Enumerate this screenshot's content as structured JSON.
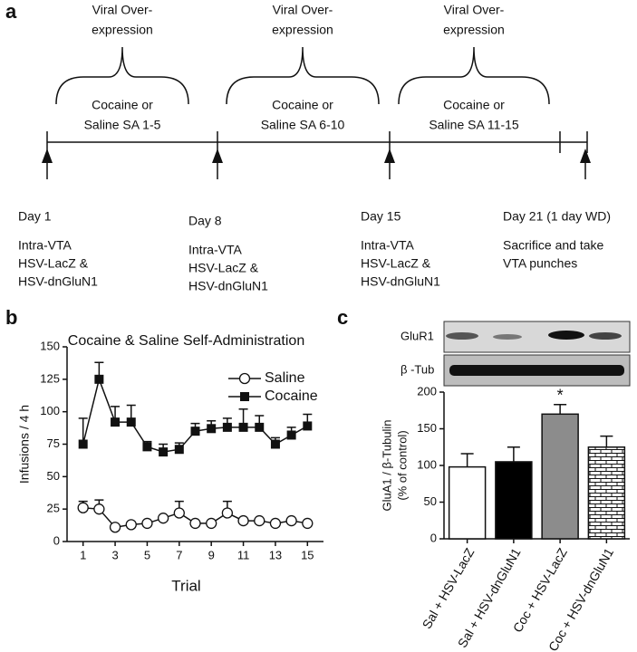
{
  "panel_a": {
    "label": "a",
    "phases": [
      {
        "top": [
          "Viral Over-",
          "expression"
        ],
        "bottom": [
          "Cocaine or",
          "Saline SA 1-5"
        ]
      },
      {
        "top": [
          "Viral Over-",
          "expression"
        ],
        "bottom": [
          "Cocaine or",
          "Saline SA 6-10"
        ]
      },
      {
        "top": [
          "Viral Over-",
          "expression"
        ],
        "bottom": [
          "Cocaine or",
          "Saline SA 11-15"
        ]
      }
    ],
    "days": [
      {
        "day": "Day 1",
        "notes": [
          "Intra-VTA",
          "HSV-LacZ &",
          "HSV-dnGluN1"
        ]
      },
      {
        "day": "Day 8",
        "notes": [
          "Intra-VTA",
          "HSV-LacZ &",
          "HSV-dnGluN1"
        ]
      },
      {
        "day": "Day 15",
        "notes": [
          "Intra-VTA",
          "HSV-LacZ &",
          "HSV-dnGluN1"
        ]
      },
      {
        "day": "Day 21 (1 day WD)",
        "notes": [
          "Sacrifice and take",
          "VTA punches"
        ]
      }
    ]
  },
  "chart_data": [
    {
      "type": "line",
      "panel_label": "b",
      "title": "Cocaine & Saline Self-Administration",
      "x_label": "Trial",
      "y_label": "Infusions / 4 h",
      "x": [
        1,
        2,
        3,
        4,
        5,
        6,
        7,
        8,
        9,
        10,
        11,
        12,
        13,
        14,
        15
      ],
      "xlim": [
        0,
        16
      ],
      "xticks": [
        1,
        3,
        5,
        7,
        9,
        11,
        13,
        15
      ],
      "ylim": [
        0,
        150
      ],
      "yticks": [
        0,
        25,
        50,
        75,
        100,
        125,
        150
      ],
      "legend": "top-right",
      "series": [
        {
          "name": "Saline",
          "color": "#111111",
          "marker": "open-circle",
          "values": [
            26,
            25,
            11,
            13,
            14,
            18,
            22,
            14,
            14,
            22,
            16,
            16,
            14,
            16,
            14
          ],
          "errors": [
            5,
            7,
            1,
            2,
            2,
            2,
            9,
            2,
            2,
            9,
            2,
            1,
            1,
            1,
            1
          ]
        },
        {
          "name": "Cocaine",
          "color": "#111111",
          "marker": "square",
          "values": [
            75,
            125,
            92,
            92,
            73,
            69,
            71,
            85,
            87,
            88,
            88,
            88,
            75,
            82,
            89
          ],
          "errors": [
            20,
            13,
            12,
            13,
            4,
            6,
            5,
            6,
            6,
            7,
            14,
            9,
            5,
            6,
            9
          ]
        }
      ]
    },
    {
      "type": "bar",
      "panel_label": "c",
      "blot_labels": [
        "GluR1",
        "β -Tub"
      ],
      "y_label": [
        "GluA1 / β-Tubulin",
        "(% of control)"
      ],
      "categories": [
        "Sal + HSV-LacZ",
        "Sal + HSV-dnGluN1",
        "Coc + HSV-LacZ",
        "Coc + HSV-dnGluN1"
      ],
      "values": [
        98,
        105,
        170,
        125
      ],
      "errors": [
        18,
        20,
        13,
        15
      ],
      "colors": [
        "#ffffff",
        "#000000",
        "#8c8c8c",
        "#ffffff"
      ],
      "patterns": [
        "none",
        "none",
        "none",
        "brick"
      ],
      "annotations": [
        {
          "text": "*",
          "category": 2
        }
      ],
      "ylim": [
        0,
        200
      ],
      "yticks": [
        0,
        50,
        100,
        150,
        200
      ]
    }
  ]
}
